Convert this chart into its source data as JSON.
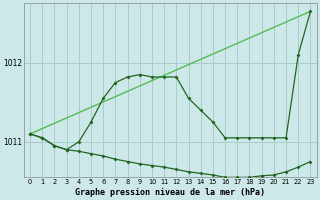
{
  "background_color": "#cce8e8",
  "grid_color": "#aacccc",
  "line_color_light": "#55bb55",
  "line_color_dark": "#226622",
  "title": "Graphe pression niveau de la mer (hPa)",
  "yticks": [
    1011,
    1012
  ],
  "ylim": [
    1010.55,
    1012.75
  ],
  "xlim": [
    -0.5,
    23.5
  ],
  "series1_x": [
    0,
    23
  ],
  "series1_y": [
    1011.1,
    1012.65
  ],
  "series2_x": [
    0,
    1,
    2,
    3,
    4,
    5,
    6,
    7,
    8,
    9,
    10,
    11,
    12,
    13,
    14,
    15,
    16,
    17,
    18,
    19,
    20,
    21,
    22,
    23
  ],
  "series2_y": [
    1011.1,
    1011.05,
    1010.95,
    1010.9,
    1011.0,
    1011.25,
    1011.55,
    1011.75,
    1011.82,
    1011.85,
    1011.82,
    1011.82,
    1011.82,
    1011.55,
    1011.4,
    1011.25,
    1011.05,
    1011.05,
    1011.05,
    1011.05,
    1011.05,
    1011.05,
    1012.1,
    1012.65
  ],
  "series3_x": [
    0,
    1,
    2,
    3,
    4,
    5,
    6,
    7,
    8,
    9,
    10,
    11,
    12,
    13,
    14,
    15,
    16,
    17,
    18,
    19,
    20,
    21,
    22,
    23
  ],
  "series3_y": [
    1011.1,
    1011.05,
    1010.95,
    1010.9,
    1010.88,
    1010.85,
    1010.82,
    1010.78,
    1010.75,
    1010.72,
    1010.7,
    1010.68,
    1010.65,
    1010.62,
    1010.6,
    1010.58,
    1010.55,
    1010.55,
    1010.55,
    1010.57,
    1010.58,
    1010.62,
    1010.68,
    1010.75
  ]
}
